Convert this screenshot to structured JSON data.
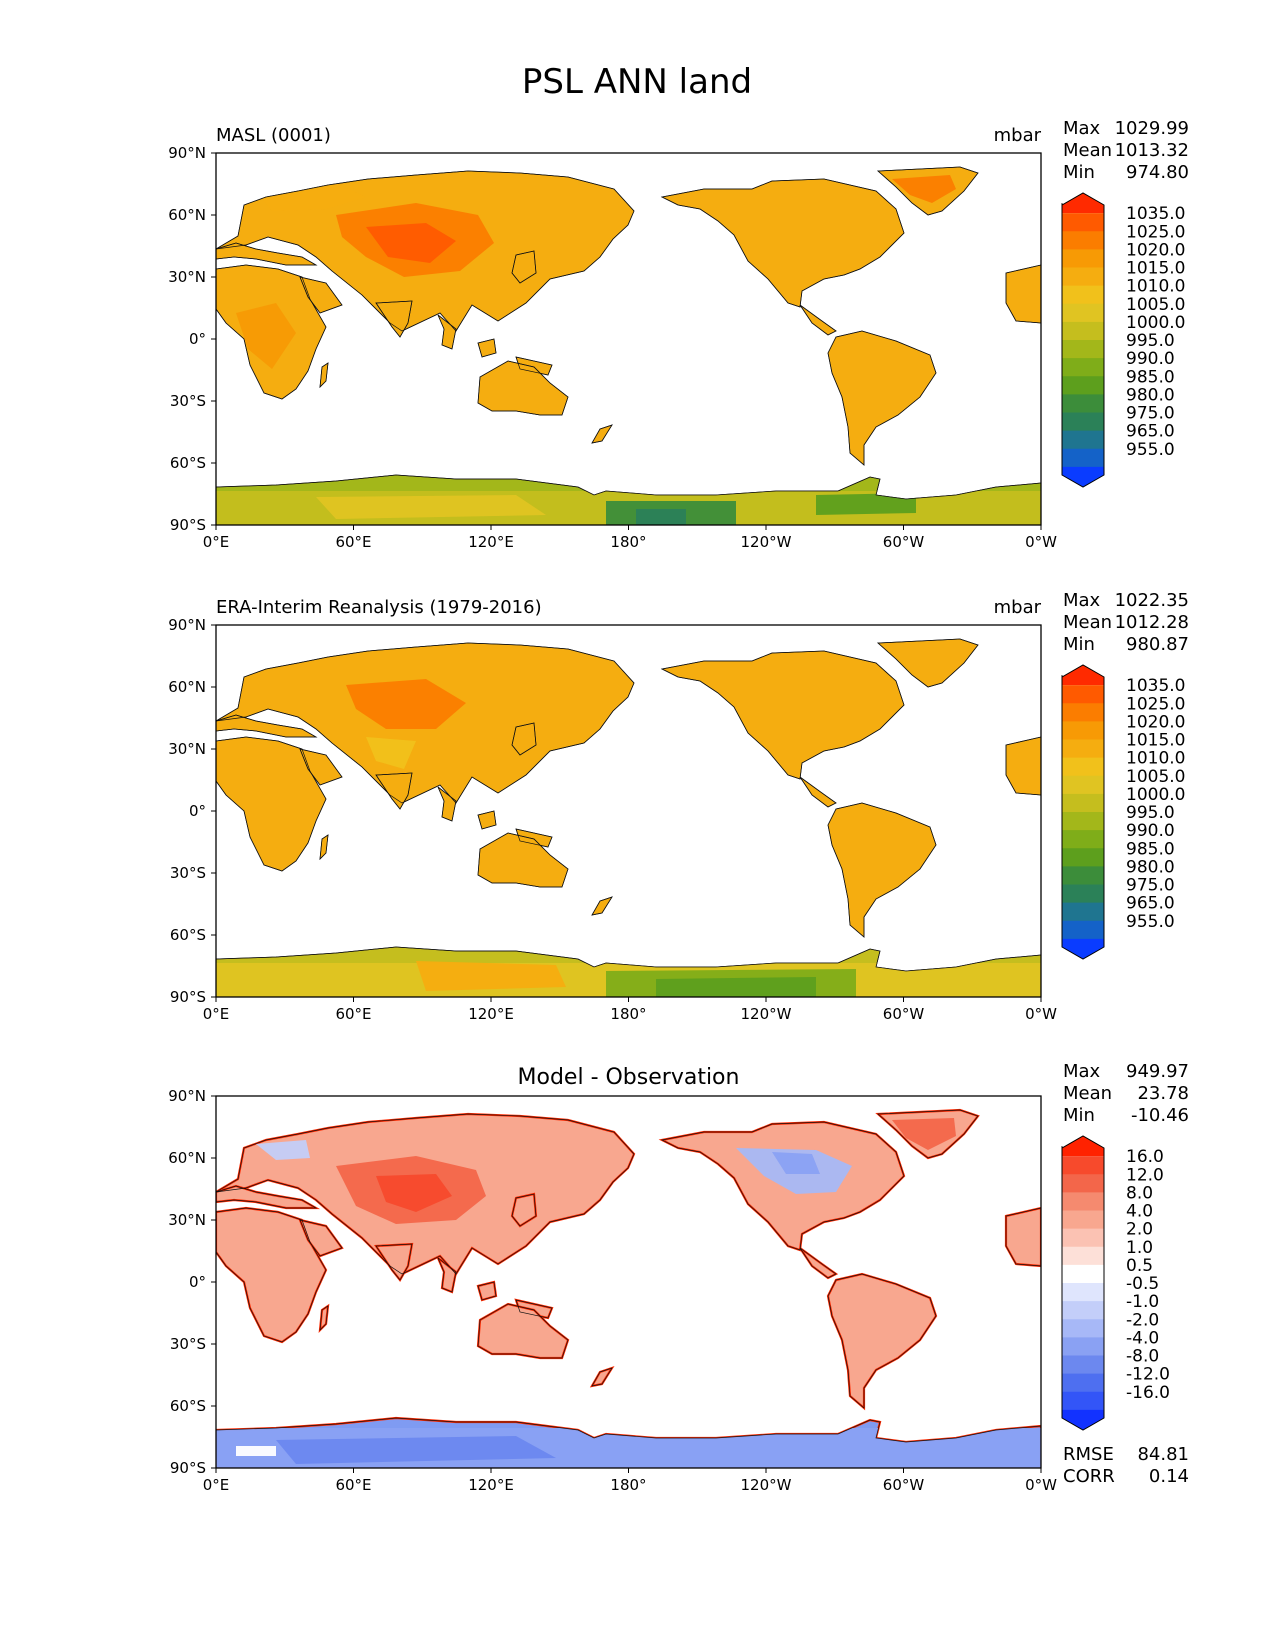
{
  "title": "PSL ANN land",
  "axes": {
    "lat_ticks": [
      "90°N",
      "60°N",
      "30°N",
      "0°",
      "30°S",
      "60°S",
      "90°S"
    ],
    "lon_ticks": [
      "0°E",
      "60°E",
      "120°E",
      "180°",
      "120°W",
      "60°W",
      "0°W"
    ]
  },
  "panels": [
    {
      "id": "model",
      "subtitle_left": "MASL (0001)",
      "subtitle_center": "",
      "units": "mbar",
      "stats": [
        {
          "label": "Max",
          "value": "1029.99"
        },
        {
          "label": "Mean",
          "value": "1013.32"
        },
        {
          "label": "Min",
          "value": "974.80"
        }
      ],
      "colorbar_labels": [
        "1035.0",
        "1025.0",
        "1020.0",
        "1015.0",
        "1010.0",
        "1005.0",
        "1000.0",
        "995.0",
        "990.0",
        "985.0",
        "980.0",
        "975.0",
        "965.0",
        "955.0"
      ],
      "colorbar_colors": [
        "#ff2a00",
        "#ff5a00",
        "#fb7d00",
        "#f79a05",
        "#f5ad10",
        "#f1c11b",
        "#e0c422",
        "#c5be1e",
        "#a3b71a",
        "#7fad19",
        "#5d9f1d",
        "#3c8d3a",
        "#2b8158",
        "#1f7590",
        "#1462c8",
        "#0a3cff"
      ],
      "antarctic": "green"
    },
    {
      "id": "obs",
      "subtitle_left": "ERA-Interim Reanalysis (1979-2016)",
      "subtitle_center": "",
      "units": "mbar",
      "stats": [
        {
          "label": "Max",
          "value": "1022.35"
        },
        {
          "label": "Mean",
          "value": "1012.28"
        },
        {
          "label": "Min",
          "value": "980.87"
        }
      ],
      "colorbar_labels": [
        "1035.0",
        "1025.0",
        "1020.0",
        "1015.0",
        "1010.0",
        "1005.0",
        "1000.0",
        "995.0",
        "990.0",
        "985.0",
        "980.0",
        "975.0",
        "965.0",
        "955.0"
      ],
      "colorbar_colors": [
        "#ff2a00",
        "#ff5a00",
        "#fb7d00",
        "#f79a05",
        "#f5ad10",
        "#f1c11b",
        "#e0c422",
        "#c5be1e",
        "#a3b71a",
        "#7fad19",
        "#5d9f1d",
        "#3c8d3a",
        "#2b8158",
        "#1f7590",
        "#1462c8",
        "#0a3cff"
      ],
      "antarctic": "green-yellow"
    },
    {
      "id": "diff",
      "subtitle_left": "",
      "subtitle_center": "Model - Observation",
      "units": "",
      "stats": [
        {
          "label": "Max",
          "value": "949.97"
        },
        {
          "label": "Mean",
          "value": "23.78"
        },
        {
          "label": "Min",
          "value": "-10.46"
        }
      ],
      "colorbar_labels": [
        "16.0",
        "12.0",
        "8.0",
        "4.0",
        "2.0",
        "1.0",
        "0.5",
        "-0.5",
        "-1.0",
        "-2.0",
        "-4.0",
        "-8.0",
        "-12.0",
        "-16.0"
      ],
      "colorbar_colors": [
        "#ff2200",
        "#f74a2c",
        "#f3664a",
        "#f58a6f",
        "#f8a78f",
        "#fbc2b3",
        "#fde0d8",
        "#ffffff",
        "#dfe5fd",
        "#c3cef9",
        "#a7b8f7",
        "#8aa1f3",
        "#6c88ef",
        "#4e6ff0",
        "#3355f7",
        "#1232ff"
      ],
      "antarctic": "blue",
      "error_stats": [
        {
          "label": "RMSE",
          "value": "84.81"
        },
        {
          "label": "CORR",
          "value": "0.14"
        }
      ]
    }
  ]
}
